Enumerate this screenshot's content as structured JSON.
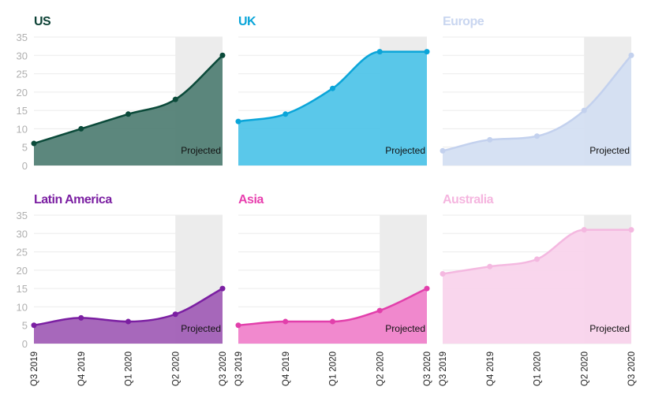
{
  "chart_data": {
    "type": "area",
    "categories": [
      "Q3 2019",
      "Q4 2019",
      "Q1 2020",
      "Q2 2020",
      "Q3 2020"
    ],
    "ylim": [
      0,
      35
    ],
    "yticks": [
      0,
      5,
      10,
      15,
      20,
      25,
      30,
      35
    ],
    "projected_label": "Projected",
    "projected_from": "Q2 2020",
    "grid": true,
    "panels": [
      {
        "name": "US",
        "values": [
          6,
          10,
          14,
          18,
          30
        ],
        "title_color": "#0d4236",
        "line_color": "#0b4a3a",
        "fill_color": "#4e7d72"
      },
      {
        "name": "UK",
        "values": [
          12,
          14,
          21,
          31,
          31
        ],
        "title_color": "#0aa5d9",
        "line_color": "#0aa5d9",
        "fill_color": "#4cc3e8"
      },
      {
        "name": "Europe",
        "values": [
          4,
          7,
          8,
          15,
          30
        ],
        "title_color": "#c9d6f0",
        "line_color": "#c3d1ee",
        "fill_color": "#d3def2"
      },
      {
        "name": "Latin America",
        "values": [
          5,
          7,
          6,
          8,
          15
        ],
        "title_color": "#7b1fa2",
        "line_color": "#7b1fa2",
        "fill_color": "#a05bb5"
      },
      {
        "name": "Asia",
        "values": [
          5,
          6,
          6,
          9,
          15
        ],
        "title_color": "#e83fae",
        "line_color": "#e23fab",
        "fill_color": "#f07fca"
      },
      {
        "name": "Australia",
        "values": [
          19,
          21,
          23,
          31,
          31
        ],
        "title_color": "#f5b5df",
        "line_color": "#f4b8e0",
        "fill_color": "#f8d2ec"
      }
    ]
  }
}
